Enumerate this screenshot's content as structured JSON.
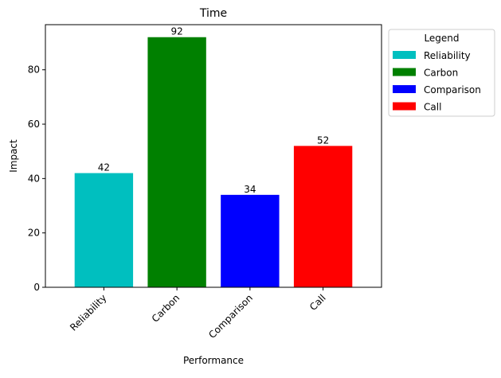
{
  "chart_data": {
    "type": "bar",
    "title": "Time",
    "xlabel": "Performance",
    "ylabel": "Impact",
    "categories": [
      "Reliability",
      "Carbon",
      "Comparison",
      "Call"
    ],
    "values": [
      42,
      92,
      34,
      52
    ],
    "data_labels": [
      "42",
      "92",
      "34",
      "52"
    ],
    "colors": [
      "#00bfbf",
      "#008000",
      "#0000ff",
      "#ff0000"
    ],
    "ylim": [
      0,
      96.6
    ],
    "yticks": [
      0,
      20,
      40,
      60,
      80
    ],
    "ytick_labels": [
      "0",
      "20",
      "40",
      "60",
      "80"
    ],
    "grid": false,
    "legend": {
      "title": "Legend",
      "placement": "outside-top-right",
      "entries": [
        "Reliability",
        "Carbon",
        "Comparison",
        "Call"
      ]
    }
  }
}
